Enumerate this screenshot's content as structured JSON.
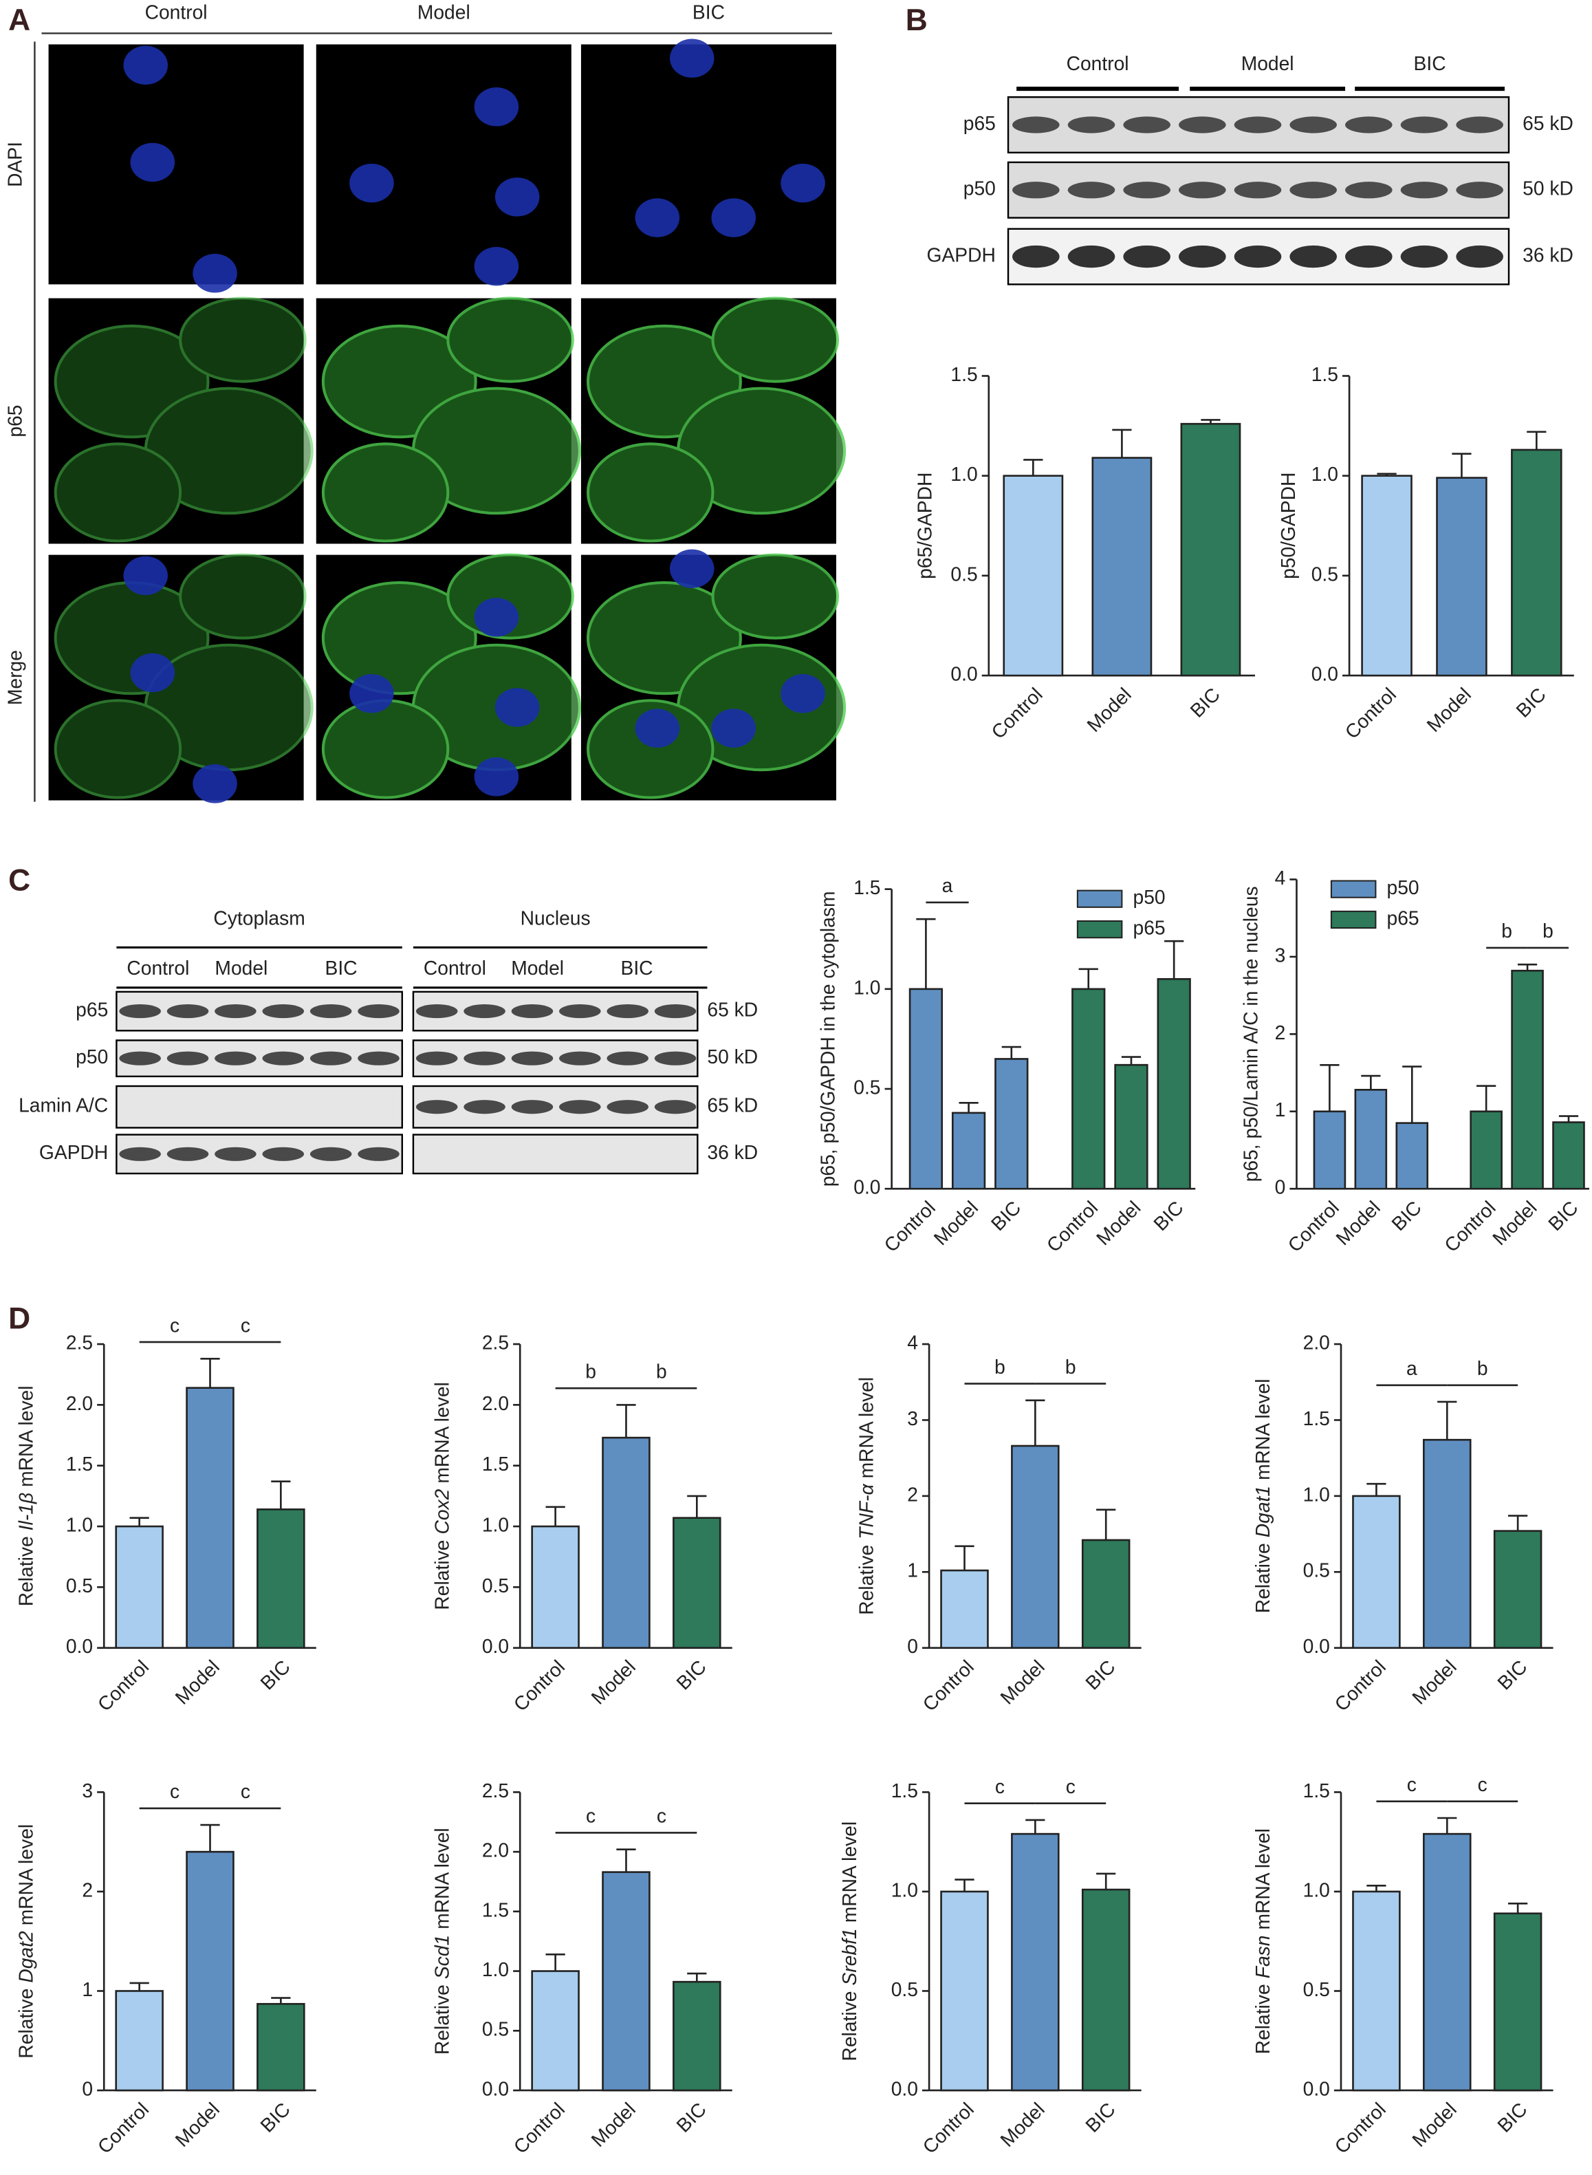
{
  "panels": [
    "A",
    "B",
    "C",
    "D"
  ],
  "microscopy": {
    "columns": [
      "Control",
      "Model",
      "BIC"
    ],
    "rows": [
      "DAPI",
      "p65",
      "Merge"
    ]
  },
  "blot_b": {
    "groups": [
      "Control",
      "Model",
      "BIC"
    ],
    "rows": [
      {
        "label": "p65",
        "size": "65 kD"
      },
      {
        "label": "p50",
        "size": "50 kD"
      },
      {
        "label": "GAPDH",
        "size": "36 kD"
      }
    ]
  },
  "blot_c": {
    "fractions": [
      "Cytoplasm",
      "Nucleus"
    ],
    "groups": [
      "Control",
      "Model",
      "BIC"
    ],
    "rows": [
      {
        "label": "p65",
        "size": "65 kD"
      },
      {
        "label": "p50",
        "size": "50 kD"
      },
      {
        "label": "Lamin A/C",
        "size": "65 kD"
      },
      {
        "label": "GAPDH",
        "size": "36 kD"
      }
    ]
  },
  "chart_data": [
    {
      "type": "bar",
      "ylabel": "p65/GAPDH",
      "categories": [
        "Control",
        "Model",
        "BIC"
      ],
      "values": [
        1.0,
        1.09,
        1.26
      ],
      "errors": [
        0.08,
        0.14,
        0.02
      ],
      "colors": [
        "#a8cdee",
        "#5f8fc0",
        "#2e7a5a"
      ],
      "ylim": [
        0,
        1.5
      ],
      "yticks": [
        {
          "value": 0,
          "label": "0.0"
        },
        0.5,
        {
          "value": 1,
          "label": "1.0"
        },
        1.5
      ]
    },
    {
      "type": "bar",
      "ylabel": "p50/GAPDH",
      "categories": [
        "Control",
        "Model",
        "BIC"
      ],
      "values": [
        1.0,
        0.99,
        1.13
      ],
      "errors": [
        0.01,
        0.12,
        0.09
      ],
      "colors": [
        "#a8cdee",
        "#5f8fc0",
        "#2e7a5a"
      ],
      "ylim": [
        0,
        1.5
      ],
      "yticks": [
        {
          "value": 0,
          "label": "0.0"
        },
        0.5,
        {
          "value": 1,
          "label": "1.0"
        },
        1.5
      ]
    },
    {
      "type": "bar",
      "ylabel": "p65, p50/GAPDH in the cytoplasm",
      "categories": [
        "Control",
        "Model",
        "BIC",
        "Control",
        "Model",
        "BIC"
      ],
      "series": [
        {
          "name": "p50",
          "color": "#5f8fc0",
          "values": [
            1.0,
            0.38,
            0.65,
            null,
            null,
            null
          ],
          "errors": [
            0.35,
            0.05,
            0.06,
            null,
            null,
            null
          ]
        },
        {
          "name": "p65",
          "color": "#2e7a5a",
          "values": [
            null,
            null,
            null,
            1.0,
            0.62,
            1.05
          ],
          "errors": [
            null,
            null,
            null,
            0.1,
            0.04,
            0.19
          ]
        }
      ],
      "ylim": [
        0,
        1.5
      ],
      "yticks": [
        {
          "value": 0,
          "label": "0.0"
        },
        0.5,
        {
          "value": 1,
          "label": "1.0"
        },
        1.5
      ],
      "legend": "top-right",
      "annotations": [
        "a"
      ]
    },
    {
      "type": "bar",
      "ylabel": "p65, p50/Lamin A/C in the nucleus",
      "categories": [
        "Control",
        "Model",
        "BIC",
        "Control",
        "Model",
        "BIC"
      ],
      "series": [
        {
          "name": "p50",
          "color": "#5f8fc0",
          "values": [
            1.0,
            1.28,
            0.85,
            null,
            null,
            null
          ],
          "errors": [
            0.6,
            0.18,
            0.73,
            null,
            null,
            null
          ]
        },
        {
          "name": "p65",
          "color": "#2e7a5a",
          "values": [
            null,
            null,
            null,
            1.0,
            2.82,
            0.86
          ],
          "errors": [
            null,
            null,
            null,
            0.33,
            0.08,
            0.08
          ]
        }
      ],
      "ylim": [
        0,
        4
      ],
      "yticks": [
        0,
        1,
        2,
        3,
        4
      ],
      "legend": "top-left",
      "annotations": [
        "b",
        "b"
      ]
    },
    {
      "type": "bar",
      "ylabel": [
        "Relative",
        "Il-1β",
        "mRNA level"
      ],
      "categories": [
        "Control",
        "Model",
        "BIC"
      ],
      "values": [
        1.0,
        2.14,
        1.14
      ],
      "errors": [
        0.07,
        0.24,
        0.23
      ],
      "colors": [
        "#a8cdee",
        "#5f8fc0",
        "#2e7a5a"
      ],
      "ylim": [
        0,
        2.5
      ],
      "yticks": [
        {
          "value": 0,
          "label": "0.0"
        },
        0.5,
        {
          "value": 1,
          "label": "1.0"
        },
        1.5,
        {
          "value": 2,
          "label": "2.0"
        },
        2.5
      ],
      "annotations": [
        "c",
        "c"
      ]
    },
    {
      "type": "bar",
      "ylabel": [
        "Relative",
        "Cox2",
        "mRNA level"
      ],
      "categories": [
        "Control",
        "Model",
        "BIC"
      ],
      "values": [
        1.0,
        1.73,
        1.07
      ],
      "errors": [
        0.16,
        0.27,
        0.18
      ],
      "colors": [
        "#a8cdee",
        "#5f8fc0",
        "#2e7a5a"
      ],
      "ylim": [
        0,
        2.5
      ],
      "yticks": [
        {
          "value": 0,
          "label": "0.0"
        },
        0.5,
        {
          "value": 1,
          "label": "1.0"
        },
        1.5,
        {
          "value": 2,
          "label": "2.0"
        },
        2.5
      ],
      "annotations": [
        "b",
        "b"
      ]
    },
    {
      "type": "bar",
      "ylabel": [
        "Relative",
        "TNF-α",
        "mRNA level"
      ],
      "categories": [
        "Control",
        "Model",
        "BIC"
      ],
      "values": [
        1.02,
        2.66,
        1.42
      ],
      "errors": [
        0.32,
        0.6,
        0.4
      ],
      "colors": [
        "#a8cdee",
        "#5f8fc0",
        "#2e7a5a"
      ],
      "ylim": [
        0,
        4
      ],
      "yticks": [
        0,
        1,
        2,
        3,
        4
      ],
      "annotations": [
        "b",
        "b"
      ]
    },
    {
      "type": "bar",
      "ylabel": [
        "Relative",
        "Dgat1",
        "mRNA level"
      ],
      "categories": [
        "Control",
        "Model",
        "BIC"
      ],
      "values": [
        1.0,
        1.37,
        0.77
      ],
      "errors": [
        0.08,
        0.25,
        0.1
      ],
      "colors": [
        "#a8cdee",
        "#5f8fc0",
        "#2e7a5a"
      ],
      "ylim": [
        0,
        2
      ],
      "yticks": [
        {
          "value": 0,
          "label": "0.0"
        },
        0.5,
        {
          "value": 1,
          "label": "1.0"
        },
        1.5,
        {
          "value": 2,
          "label": "2.0"
        }
      ],
      "annotations": [
        "a",
        "b"
      ]
    },
    {
      "type": "bar",
      "ylabel": [
        "Relative",
        "Dgat2",
        "mRNA level"
      ],
      "categories": [
        "Control",
        "Model",
        "BIC"
      ],
      "values": [
        1.0,
        2.4,
        0.87
      ],
      "errors": [
        0.08,
        0.27,
        0.06
      ],
      "colors": [
        "#a8cdee",
        "#5f8fc0",
        "#2e7a5a"
      ],
      "ylim": [
        0,
        3
      ],
      "yticks": [
        0,
        1,
        2,
        3
      ],
      "annotations": [
        "c",
        "c"
      ]
    },
    {
      "type": "bar",
      "ylabel": [
        "Relative",
        "Scd1",
        "mRNA level"
      ],
      "categories": [
        "Control",
        "Model",
        "BIC"
      ],
      "values": [
        1.0,
        1.83,
        0.91
      ],
      "errors": [
        0.14,
        0.19,
        0.07
      ],
      "colors": [
        "#a8cdee",
        "#5f8fc0",
        "#2e7a5a"
      ],
      "ylim": [
        0,
        2.5
      ],
      "yticks": [
        {
          "value": 0,
          "label": "0.0"
        },
        0.5,
        {
          "value": 1,
          "label": "1.0"
        },
        1.5,
        {
          "value": 2,
          "label": "2.0"
        },
        2.5
      ],
      "annotations": [
        "c",
        "c"
      ]
    },
    {
      "type": "bar",
      "ylabel": [
        "Relative",
        "Srebf1",
        "mRNA level"
      ],
      "categories": [
        "Control",
        "Model",
        "BIC"
      ],
      "values": [
        1.0,
        1.29,
        1.01
      ],
      "errors": [
        0.06,
        0.07,
        0.08
      ],
      "colors": [
        "#a8cdee",
        "#5f8fc0",
        "#2e7a5a"
      ],
      "ylim": [
        0,
        1.5
      ],
      "yticks": [
        {
          "value": 0,
          "label": "0.0"
        },
        0.5,
        {
          "value": 1,
          "label": "1.0"
        },
        1.5
      ],
      "annotations": [
        "c",
        "c"
      ]
    },
    {
      "type": "bar",
      "ylabel": [
        "Relative",
        "Fasn",
        "mRNA level"
      ],
      "categories": [
        "Control",
        "Model",
        "BIC"
      ],
      "values": [
        1.0,
        1.29,
        0.89
      ],
      "errors": [
        0.03,
        0.08,
        0.05
      ],
      "colors": [
        "#a8cdee",
        "#5f8fc0",
        "#2e7a5a"
      ],
      "ylim": [
        0,
        1.5
      ],
      "yticks": [
        {
          "value": 0,
          "label": "0.0"
        },
        0.5,
        {
          "value": 1,
          "label": "1.0"
        },
        1.5
      ],
      "annotations": [
        "c",
        "c"
      ]
    }
  ]
}
